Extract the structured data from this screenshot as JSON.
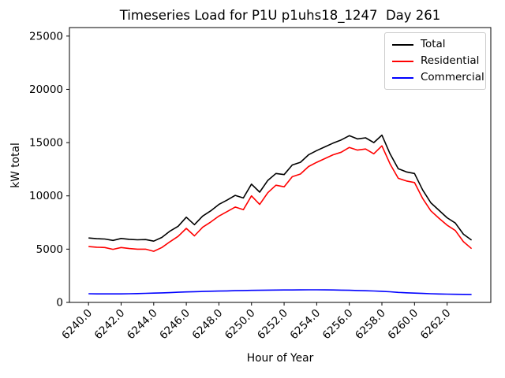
{
  "chart_data": {
    "type": "line",
    "title": "Timeseries Load for P1U p1uhs18_1247  Day 261",
    "xlabel": "Hour of Year",
    "ylabel": "kW total",
    "grid": false,
    "legend_position": "upper right",
    "xlim": [
      6238.83,
      6264.68
    ],
    "ylim": [
      0,
      25800
    ],
    "xtick_values": [
      6240,
      6242,
      6244,
      6246,
      6248,
      6250,
      6252,
      6254,
      6256,
      6258,
      6260,
      6262
    ],
    "xtick_labels": [
      "6240.0",
      "6242.0",
      "6244.0",
      "6246.0",
      "6248.0",
      "6250.0",
      "6252.0",
      "6254.0",
      "6256.0",
      "6258.0",
      "6260.0",
      "6262.0"
    ],
    "ytick_values": [
      0,
      5000,
      10000,
      15000,
      20000,
      25000
    ],
    "ytick_labels": [
      "0",
      "5000",
      "10000",
      "15000",
      "20000",
      "25000"
    ],
    "x": [
      6240.0,
      6240.5,
      6241.0,
      6241.5,
      6242.0,
      6242.5,
      6243.0,
      6243.5,
      6244.0,
      6244.5,
      6245.0,
      6245.5,
      6246.0,
      6246.5,
      6247.0,
      6247.5,
      6248.0,
      6248.5,
      6249.0,
      6249.5,
      6250.0,
      6250.5,
      6251.0,
      6251.5,
      6252.0,
      6252.5,
      6253.0,
      6253.5,
      6254.0,
      6254.5,
      6255.0,
      6255.5,
      6256.0,
      6256.5,
      6257.0,
      6257.5,
      6258.0,
      6258.5,
      6259.0,
      6259.5,
      6260.0,
      6260.5,
      6261.0,
      6261.5,
      6262.0,
      6262.5,
      6263.0,
      6263.5
    ],
    "series": [
      {
        "name": "Total",
        "color": "#000000",
        "values": [
          6050,
          5980,
          5950,
          5820,
          6000,
          5920,
          5880,
          5900,
          5750,
          6100,
          6700,
          7150,
          8000,
          7300,
          8100,
          8600,
          9200,
          9600,
          10050,
          9800,
          11100,
          10350,
          11450,
          12100,
          12000,
          12900,
          13150,
          13850,
          14250,
          14600,
          14950,
          15250,
          15650,
          15350,
          15450,
          15000,
          15700,
          13950,
          12550,
          12250,
          12100,
          10550,
          9350,
          8650,
          7950,
          7450,
          6400,
          5850
        ]
      },
      {
        "name": "Residential",
        "color": "#ff0000",
        "values": [
          5240,
          5180,
          5150,
          4980,
          5150,
          5060,
          5000,
          5000,
          4800,
          5150,
          5700,
          6200,
          6950,
          6250,
          7050,
          7550,
          8100,
          8520,
          8950,
          8700,
          10000,
          9200,
          10300,
          11000,
          10850,
          11800,
          12050,
          12750,
          13150,
          13500,
          13850,
          14100,
          14550,
          14300,
          14400,
          13950,
          14700,
          13000,
          11650,
          11400,
          11250,
          9750,
          8600,
          7900,
          7250,
          6750,
          5700,
          5050
        ]
      },
      {
        "name": "Commercial",
        "color": "#0000ff",
        "values": [
          810,
          800,
          795,
          795,
          800,
          815,
          830,
          850,
          870,
          895,
          920,
          950,
          980,
          1005,
          1030,
          1050,
          1065,
          1080,
          1100,
          1115,
          1130,
          1140,
          1150,
          1160,
          1165,
          1170,
          1175,
          1180,
          1180,
          1175,
          1165,
          1150,
          1135,
          1115,
          1095,
          1070,
          1045,
          1000,
          940,
          900,
          870,
          840,
          810,
          790,
          775,
          765,
          755,
          745
        ]
      }
    ]
  }
}
